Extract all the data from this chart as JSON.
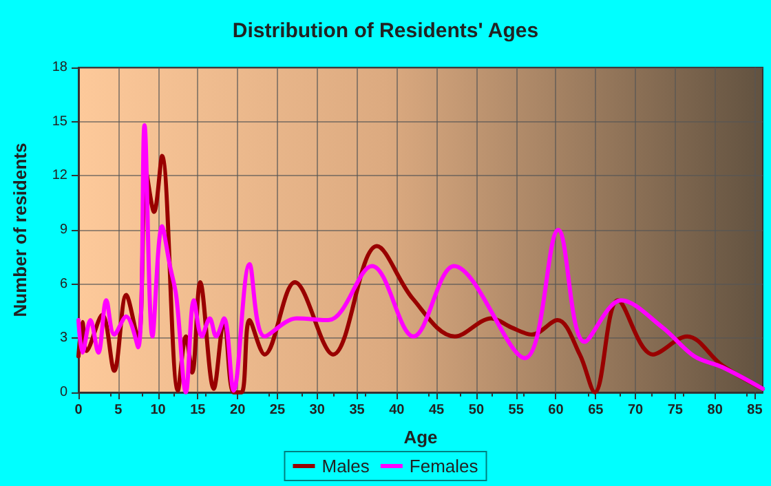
{
  "chart_data": {
    "type": "line",
    "title": "Distribution of Residents' Ages",
    "xlabel": "Age",
    "ylabel": "Number of residents",
    "xlim": [
      0,
      86
    ],
    "xticks": [
      0,
      5,
      10,
      15,
      20,
      25,
      30,
      35,
      40,
      45,
      50,
      55,
      60,
      65,
      70,
      75,
      80,
      85
    ],
    "ylim": [
      0,
      18
    ],
    "yticks": [
      0,
      3,
      6,
      9,
      12,
      15,
      18
    ],
    "grid": true,
    "legend": "bottom",
    "marker": "none",
    "line_style": "solid",
    "series": [
      {
        "name": "Males",
        "color": "#990000",
        "x": [
          0,
          0.5,
          1,
          3,
          4.5,
          6,
          7.5,
          8.5,
          9.5,
          10.5,
          12.5,
          13.5,
          14.3,
          15.3,
          17,
          18.3,
          19.5,
          20.5,
          21.5,
          23.4,
          27.2,
          32,
          37.5,
          42,
          47.3,
          51.9,
          54.4,
          57,
          60.2,
          63,
          64.9,
          67.8,
          72.2,
          76.5,
          80.9,
          86
        ],
        "values": [
          2,
          3.9,
          2.3,
          4.3,
          1.2,
          5.4,
          2.9,
          12.2,
          10,
          13.1,
          0.1,
          3.1,
          1.1,
          6.1,
          0.2,
          4,
          0,
          0,
          4,
          2.1,
          6.1,
          2.1,
          8.1,
          5.2,
          3.1,
          4.1,
          3.6,
          3.2,
          4,
          2.1,
          0,
          5.1,
          2.1,
          3.1,
          1.5,
          0.2
        ]
      },
      {
        "name": "Females",
        "color": "#ff00ff",
        "x": [
          0,
          0.5,
          1.5,
          2.5,
          3.5,
          4.5,
          6,
          7.5,
          8.3,
          9.3,
          10.5,
          11.5,
          12.3,
          13.5,
          14.5,
          15.5,
          16.5,
          17.3,
          18.3,
          19.5,
          21.5,
          23.4,
          27.4,
          31.4,
          36.9,
          42.1,
          47.2,
          56.1,
          60.3,
          63.6,
          68.2,
          73.4,
          77.4,
          80.9,
          86
        ],
        "values": [
          4,
          2.2,
          4,
          2.2,
          5.1,
          3.2,
          4.2,
          2.5,
          14.8,
          3.1,
          9.2,
          7,
          5.3,
          0,
          5.1,
          3.1,
          4.1,
          3.1,
          4.1,
          0.1,
          7.1,
          3.1,
          4.1,
          4,
          7,
          3.1,
          7,
          1.9,
          9,
          2.8,
          5.1,
          3.6,
          2,
          1.4,
          0.2
        ]
      }
    ]
  }
}
